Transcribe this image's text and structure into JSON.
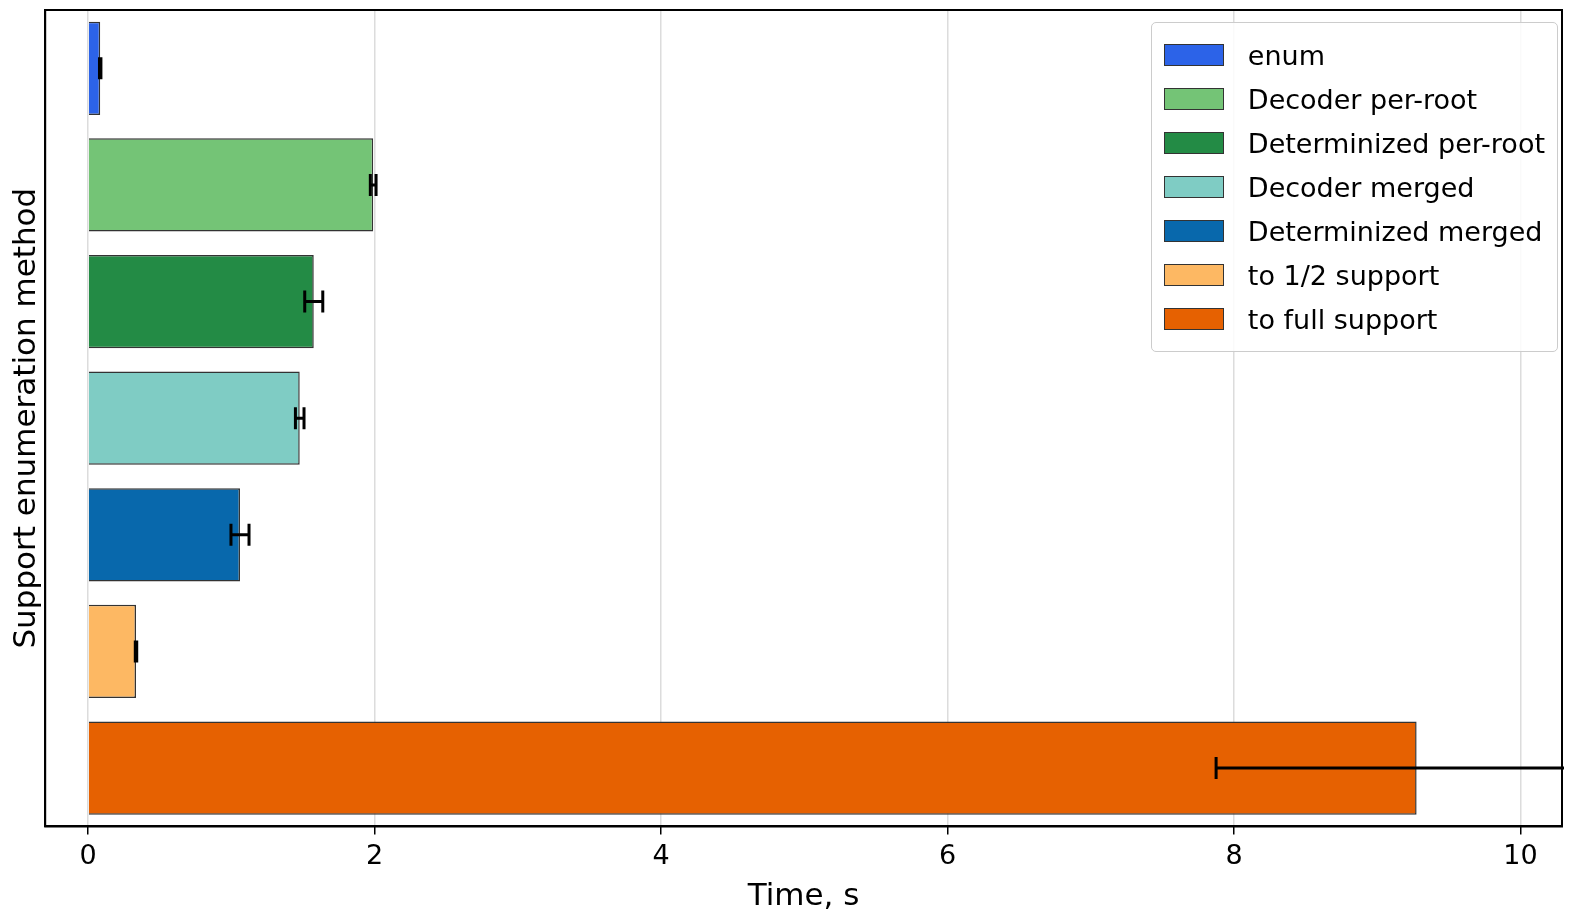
{
  "chart_data": {
    "type": "bar",
    "orientation": "horizontal",
    "xlabel": "Time, s",
    "ylabel": "Support enumeration method",
    "categories": [
      null,
      null,
      null,
      null,
      null,
      null,
      null
    ],
    "series": [
      {
        "name": "enum",
        "color": "#2c63e8",
        "values": [
          0.084,
          null,
          null,
          null,
          null,
          null,
          null
        ],
        "errors": [
          0.005,
          null,
          null,
          null,
          null,
          null,
          null
        ]
      },
      {
        "name": "Decoder per-root",
        "color": "#74c476",
        "values": [
          null,
          1.99,
          null,
          null,
          null,
          null,
          null
        ],
        "errors": [
          null,
          0.02,
          null,
          null,
          null,
          null,
          null
        ]
      },
      {
        "name": "Determinized per-root",
        "color": "#238b45",
        "values": [
          null,
          null,
          1.575,
          null,
          null,
          null,
          null
        ],
        "errors": [
          null,
          null,
          0.063,
          null,
          null,
          null,
          null
        ]
      },
      {
        "name": "Decoder merged",
        "color": "#7fccc4",
        "values": [
          null,
          null,
          null,
          1.477,
          null,
          null,
          null
        ],
        "errors": [
          null,
          null,
          null,
          0.03,
          null,
          null,
          null
        ]
      },
      {
        "name": "Determinized merged",
        "color": "#0868ac",
        "values": [
          null,
          null,
          null,
          null,
          1.06,
          null,
          null
        ],
        "errors": [
          null,
          null,
          null,
          null,
          0.063,
          null,
          null
        ]
      },
      {
        "name": "to 1/2 support",
        "color": "#fdb863",
        "values": [
          null,
          null,
          null,
          null,
          null,
          0.334,
          null
        ],
        "errors": [
          null,
          null,
          null,
          null,
          null,
          0.005,
          null
        ]
      },
      {
        "name": "to full support",
        "color": "#e66101",
        "values": [
          null,
          null,
          null,
          null,
          null,
          null,
          9.275
        ],
        "errors": [
          null,
          null,
          null,
          null,
          null,
          null,
          1.4
        ]
      }
    ],
    "xlim": [
      -0.3,
      10.29
    ],
    "xticks": [
      0,
      2,
      4,
      6,
      8,
      10
    ],
    "grid": "x",
    "legend": "top right",
    "tick_labels": "x"
  }
}
